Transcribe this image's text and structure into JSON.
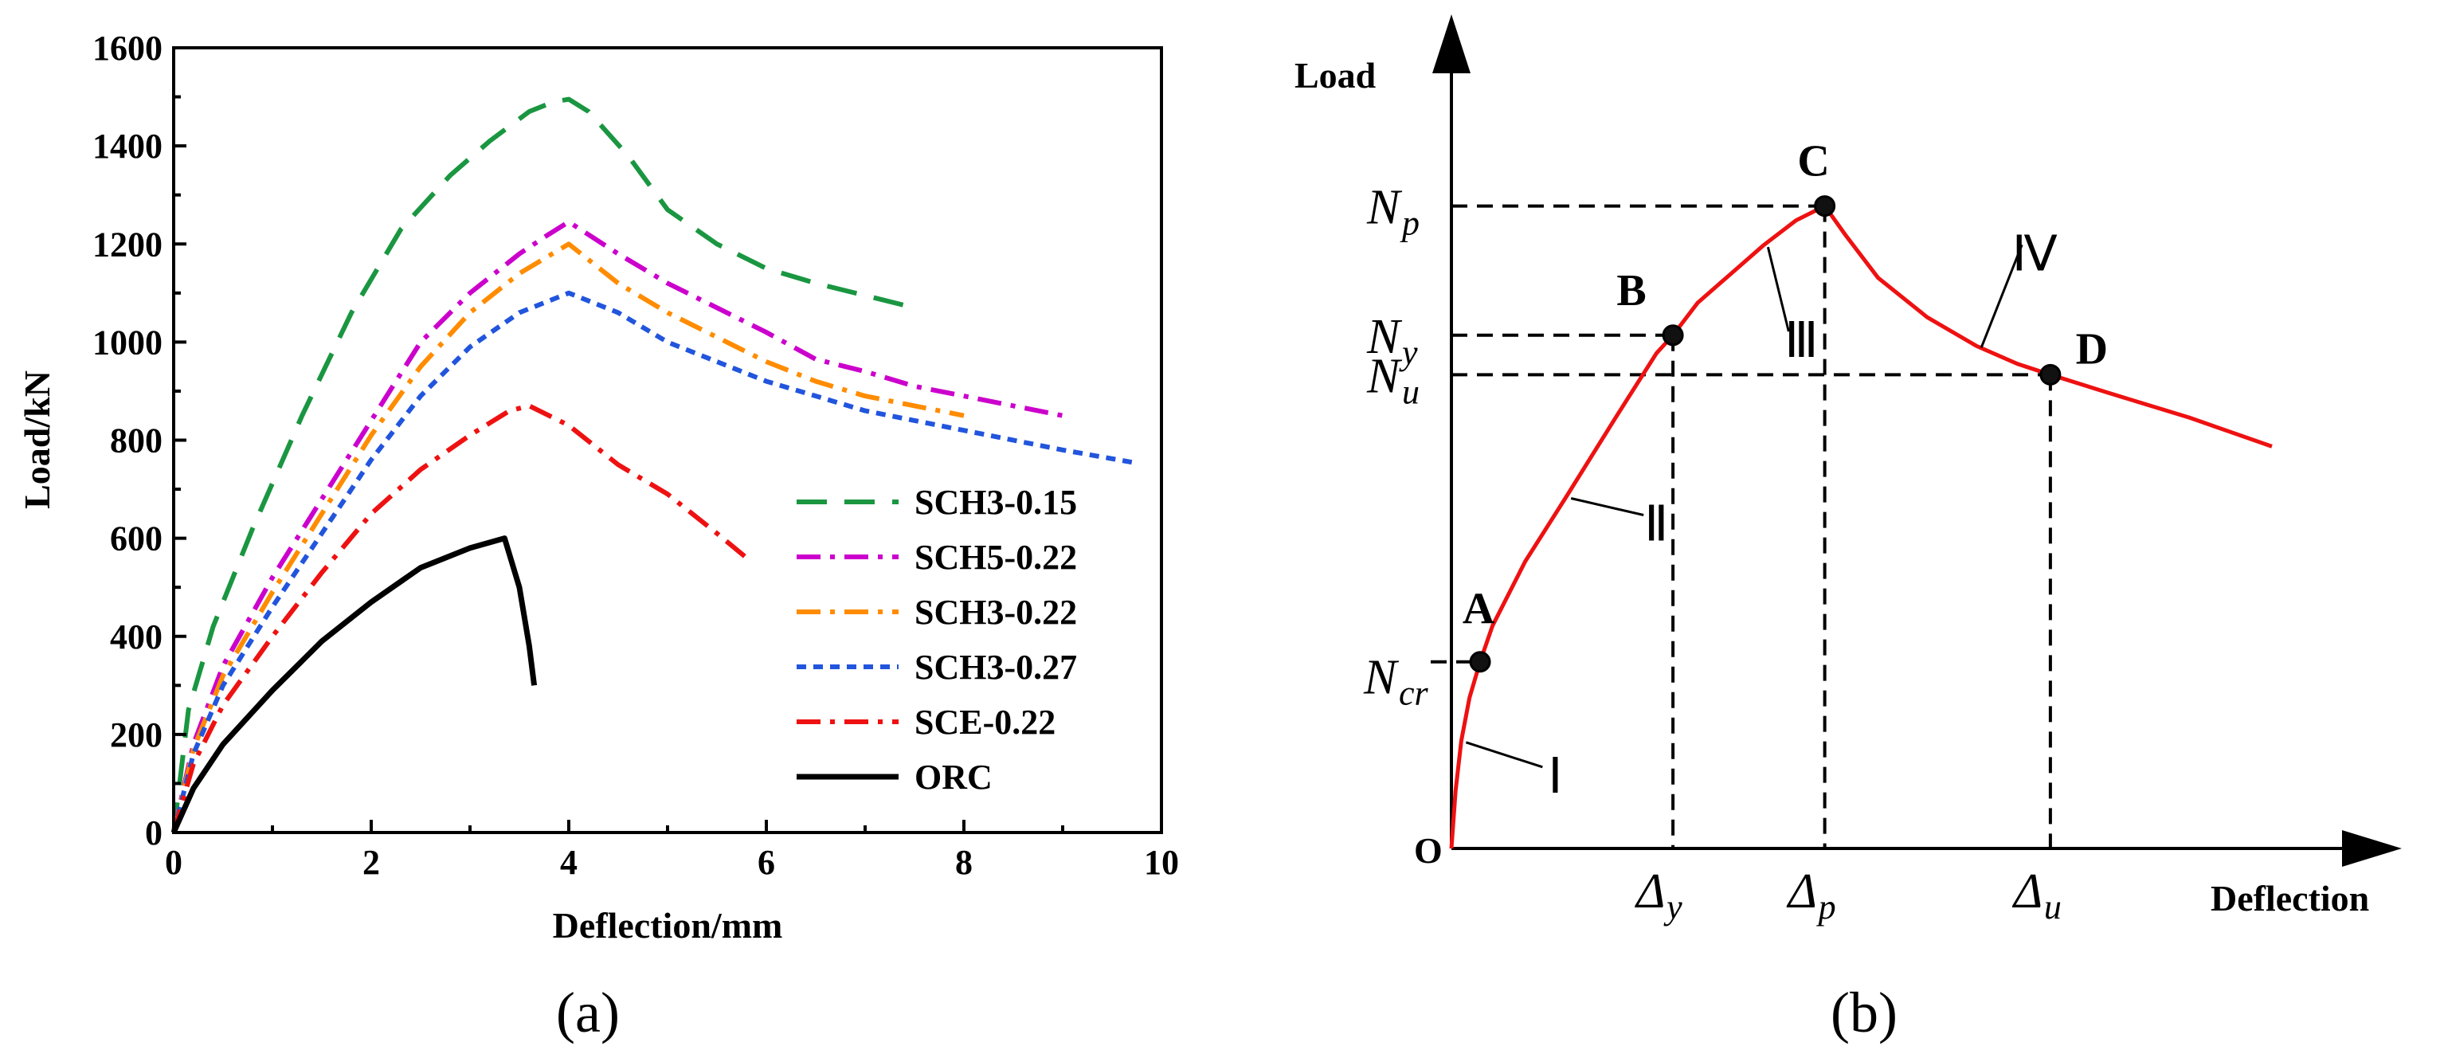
{
  "chart_data": [
    {
      "type": "line",
      "panel_label": "(a)",
      "xlabel": "Deflection/mm",
      "ylabel": "Load/kN",
      "xlim": [
        0,
        10
      ],
      "ylim": [
        0,
        1600
      ],
      "xticks": [
        0,
        2,
        4,
        6,
        8,
        10
      ],
      "yticks": [
        0,
        200,
        400,
        600,
        800,
        1000,
        1200,
        1400,
        1600
      ],
      "grid": false,
      "legend_position": "bottom-right",
      "series": [
        {
          "name": "SCH3-0.15",
          "color": "#1a9641",
          "style": "dash",
          "x": [
            0,
            0.15,
            0.4,
            0.8,
            1.3,
            1.8,
            2.3,
            2.8,
            3.2,
            3.6,
            3.85,
            4.0,
            4.2,
            4.6,
            5.0,
            5.5,
            6.0,
            6.5,
            7.0,
            7.5
          ],
          "y": [
            0,
            250,
            420,
            620,
            850,
            1060,
            1230,
            1340,
            1410,
            1470,
            1490,
            1495,
            1470,
            1380,
            1270,
            1200,
            1150,
            1120,
            1095,
            1070
          ]
        },
        {
          "name": "SCH5-0.22",
          "color": "#cc00cc",
          "style": "dashdot",
          "x": [
            0,
            0.2,
            0.5,
            1.0,
            1.5,
            2.0,
            2.5,
            3.0,
            3.5,
            3.8,
            4.0,
            4.5,
            5.0,
            5.5,
            6.0,
            6.5,
            7.0,
            7.5,
            8.0,
            8.5,
            9.0
          ],
          "y": [
            0,
            180,
            340,
            520,
            680,
            840,
            1000,
            1100,
            1180,
            1220,
            1245,
            1180,
            1120,
            1070,
            1020,
            965,
            940,
            910,
            890,
            870,
            850
          ]
        },
        {
          "name": "SCH3-0.22",
          "color": "#ff8c00",
          "style": "dashdot",
          "x": [
            0,
            0.2,
            0.5,
            1.0,
            1.5,
            2.0,
            2.5,
            3.0,
            3.5,
            4.0,
            4.5,
            5.0,
            5.5,
            6.0,
            6.5,
            7.0,
            7.5,
            8.0
          ],
          "y": [
            0,
            170,
            320,
            490,
            650,
            810,
            950,
            1060,
            1140,
            1200,
            1120,
            1060,
            1010,
            960,
            920,
            890,
            870,
            850
          ]
        },
        {
          "name": "SCH3-0.27",
          "color": "#2255dd",
          "style": "dot",
          "x": [
            0,
            0.2,
            0.5,
            1.0,
            1.5,
            2.0,
            2.5,
            3.0,
            3.5,
            4.0,
            4.5,
            5.0,
            6.0,
            7.0,
            8.0,
            9.0,
            9.7
          ],
          "y": [
            0,
            160,
            300,
            460,
            610,
            760,
            890,
            990,
            1060,
            1100,
            1060,
            1000,
            920,
            860,
            820,
            780,
            755
          ]
        },
        {
          "name": "SCE-0.22",
          "color": "#ee1111",
          "style": "dashdot",
          "x": [
            0,
            0.2,
            0.5,
            1.0,
            1.5,
            2.0,
            2.5,
            3.0,
            3.4,
            3.6,
            4.0,
            4.5,
            5.0,
            5.5,
            5.8
          ],
          "y": [
            0,
            140,
            260,
            400,
            530,
            650,
            740,
            810,
            860,
            870,
            830,
            750,
            690,
            610,
            560
          ]
        },
        {
          "name": "ORC",
          "color": "#000000",
          "style": "solid",
          "x": [
            0,
            0.2,
            0.5,
            1.0,
            1.5,
            2.0,
            2.5,
            3.0,
            3.35,
            3.5,
            3.6,
            3.65
          ],
          "y": [
            0,
            90,
            180,
            290,
            390,
            470,
            540,
            580,
            600,
            500,
            380,
            300
          ]
        }
      ]
    },
    {
      "type": "line",
      "panel_label": "(b)",
      "schematic": true,
      "xlabel": "Deflection",
      "ylabel": "Load",
      "origin_label": "O",
      "xlim": [
        0,
        10
      ],
      "ylim": [
        0,
        10
      ],
      "x": [
        0,
        0.05,
        0.12,
        0.22,
        0.35,
        0.5,
        0.9,
        1.4,
        2.0,
        2.5,
        2.7,
        3.0,
        3.4,
        3.8,
        4.2,
        4.55,
        4.8,
        5.2,
        5.8,
        6.4,
        6.9,
        7.3,
        8.0,
        9.0,
        10.0
      ],
      "y": [
        0,
        0.8,
        1.5,
        2.1,
        2.6,
        3.1,
        4.0,
        4.9,
        6.0,
        6.9,
        7.15,
        7.6,
        8.0,
        8.4,
        8.75,
        8.95,
        8.55,
        7.95,
        7.4,
        7.0,
        6.75,
        6.6,
        6.35,
        6.0,
        5.6
      ],
      "points": [
        {
          "label": "A",
          "x": 0.35,
          "y": 2.6,
          "y_symbol": "N",
          "y_sub": "cr"
        },
        {
          "label": "B",
          "x": 2.7,
          "y": 7.15,
          "y_symbol": "N",
          "y_sub": "y",
          "x_symbol": "Δ",
          "x_sub": "y"
        },
        {
          "label": "C",
          "x": 4.55,
          "y": 8.95,
          "y_symbol": "N",
          "y_sub": "p",
          "x_symbol": "Δ",
          "x_sub": "p"
        },
        {
          "label": "D",
          "x": 7.3,
          "y": 6.6,
          "y_symbol": "N",
          "y_sub": "u",
          "x_symbol": "Δ",
          "x_sub": "u"
        }
      ],
      "stage_labels": [
        "Ⅰ",
        "Ⅱ",
        "Ⅲ",
        "Ⅳ"
      ]
    }
  ]
}
